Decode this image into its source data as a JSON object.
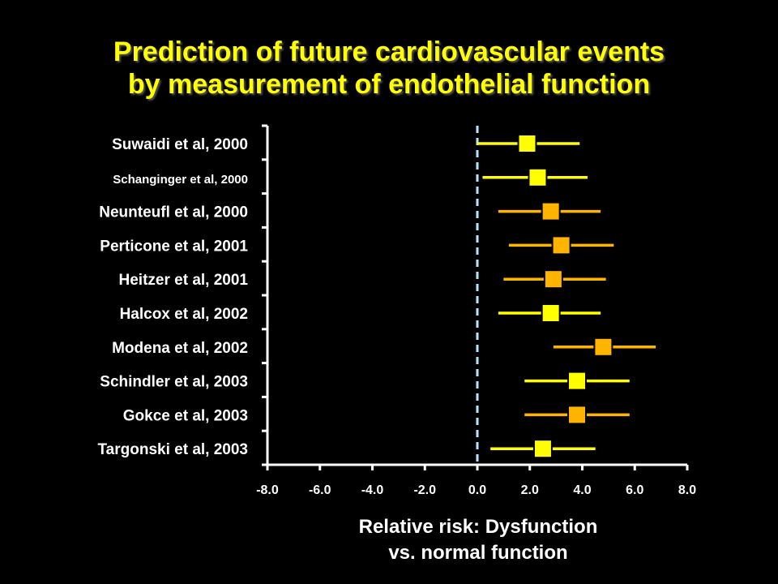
{
  "colors": {
    "background": "#000000",
    "title": "#ffff00",
    "axis": "#ffffff",
    "reference_line": "#aee7ff",
    "marker_yellow": "#ffff00",
    "marker_orange": "#ffb400"
  },
  "chart_data": {
    "type": "forest",
    "title_lines": [
      "Prediction of future cardiovascular events",
      "by measurement of endothelial function"
    ],
    "xlabel_lines": [
      "Relative risk: Dysfunction",
      "vs. normal function"
    ],
    "xlim": [
      -8.0,
      8.0
    ],
    "xticks": [
      -8.0,
      -6.0,
      -4.0,
      -2.0,
      0.0,
      2.0,
      4.0,
      6.0,
      8.0
    ],
    "xtick_labels": [
      "-8.0",
      "-6.0",
      "-4.0",
      "-2.0",
      "0.0",
      "2.0",
      "4.0",
      "6.0",
      "8.0"
    ],
    "reference_x": 0.0,
    "reference_style": "dashed",
    "studies": [
      {
        "label": "Suwaidi et al, 2000",
        "estimate": 1.9,
        "lower": 0.0,
        "upper": 3.9,
        "color": "#ffff00"
      },
      {
        "label": "Schanginger et al, 2000",
        "estimate": 2.3,
        "lower": 0.2,
        "upper": 4.2,
        "color": "#ffff00"
      },
      {
        "label": "Neunteufl et al, 2000",
        "estimate": 2.8,
        "lower": 0.8,
        "upper": 4.7,
        "color": "#ffb400"
      },
      {
        "label": "Perticone et al, 2001",
        "estimate": 3.2,
        "lower": 1.2,
        "upper": 5.2,
        "color": "#ffb400"
      },
      {
        "label": "Heitzer et al, 2001",
        "estimate": 2.9,
        "lower": 1.0,
        "upper": 4.9,
        "color": "#ffb400"
      },
      {
        "label": "Halcox et al, 2002",
        "estimate": 2.8,
        "lower": 0.8,
        "upper": 4.7,
        "color": "#ffff00"
      },
      {
        "label": "Modena et al, 2002",
        "estimate": 4.8,
        "lower": 2.9,
        "upper": 6.8,
        "color": "#ffb400"
      },
      {
        "label": "Schindler et al, 2003",
        "estimate": 3.8,
        "lower": 1.8,
        "upper": 5.8,
        "color": "#ffff00"
      },
      {
        "label": "Gokce et al, 2003",
        "estimate": 3.8,
        "lower": 1.8,
        "upper": 5.8,
        "color": "#ffb400"
      },
      {
        "label": "Targonski et al, 2003",
        "estimate": 2.5,
        "lower": 0.5,
        "upper": 4.5,
        "color": "#ffff00"
      }
    ]
  }
}
